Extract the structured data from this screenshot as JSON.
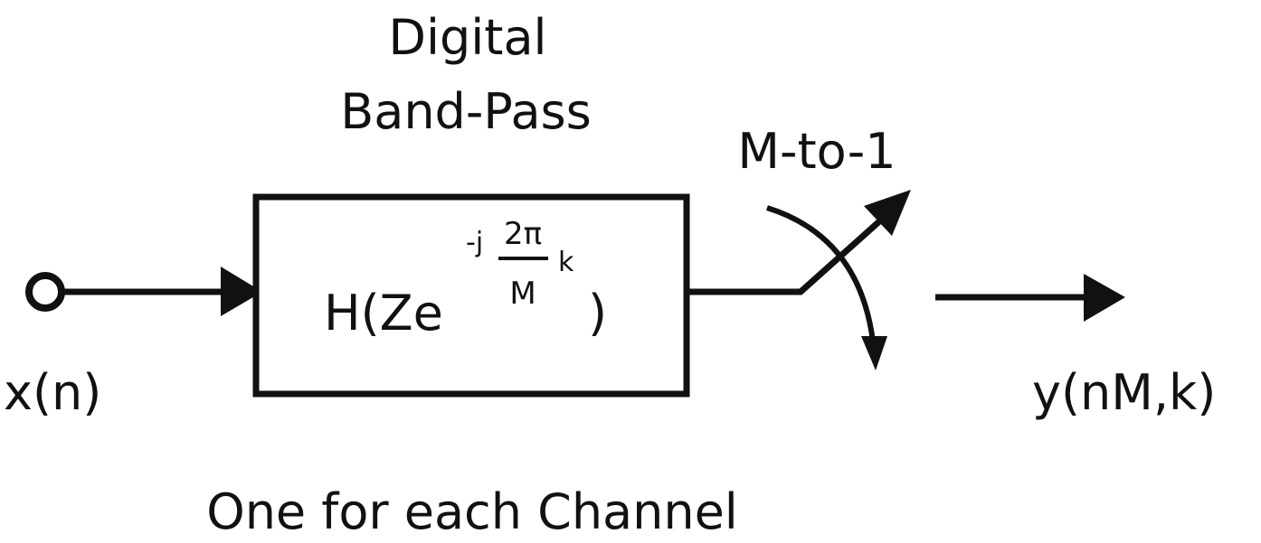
{
  "filter": {
    "title_line1": "Digital",
    "title_line2": "Band-Pass",
    "expr_main": "H(Ze",
    "expr_exp": "-j",
    "frac_num": "2π",
    "frac_den": "M",
    "expr_k": "k",
    "expr_close": ")"
  },
  "input": {
    "label": "x(n)"
  },
  "decimator": {
    "label": "M-to-1"
  },
  "output": {
    "label": "y(nM,k)"
  },
  "caption": "One for each Channel"
}
